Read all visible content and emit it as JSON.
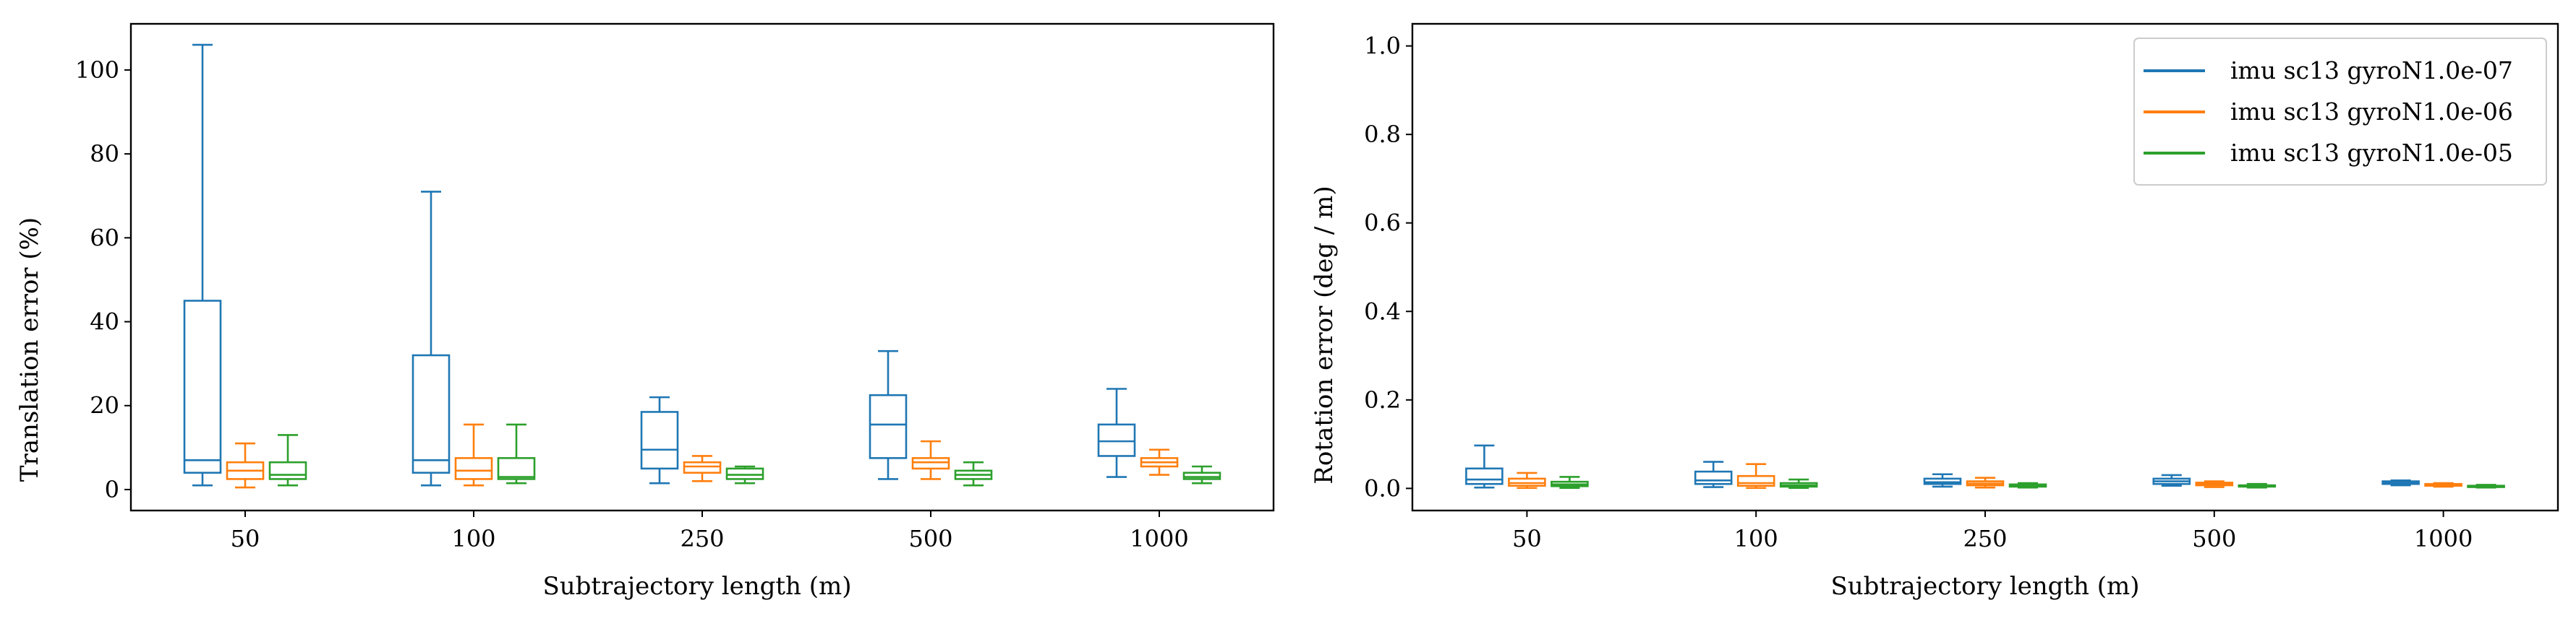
{
  "chart_data": [
    {
      "type": "boxplot",
      "xlabel": "Subtrajectory length (m)",
      "ylabel": "Translation error (%)",
      "ylim": [
        -5,
        111
      ],
      "yticks": [
        0,
        20,
        40,
        60,
        80,
        100
      ],
      "categories": [
        "50",
        "100",
        "250",
        "500",
        "1000"
      ],
      "grid": false,
      "series": [
        {
          "name": "imu sc13 gyroN1.0e-07",
          "color": "#1f77b4",
          "boxes": [
            {
              "whisker_low": 1,
              "q1": 4,
              "median": 7,
              "q3": 45,
              "whisker_high": 106
            },
            {
              "whisker_low": 1,
              "q1": 4,
              "median": 7,
              "q3": 32,
              "whisker_high": 71
            },
            {
              "whisker_low": 1.5,
              "q1": 5,
              "median": 9.5,
              "q3": 18.5,
              "whisker_high": 22
            },
            {
              "whisker_low": 2.5,
              "q1": 7.5,
              "median": 15.5,
              "q3": 22.5,
              "whisker_high": 33
            },
            {
              "whisker_low": 3,
              "q1": 8,
              "median": 11.5,
              "q3": 15.5,
              "whisker_high": 24
            }
          ]
        },
        {
          "name": "imu sc13 gyroN1.0e-06",
          "color": "#ff7f0e",
          "boxes": [
            {
              "whisker_low": 0.5,
              "q1": 2.5,
              "median": 4.5,
              "q3": 6.5,
              "whisker_high": 11
            },
            {
              "whisker_low": 1,
              "q1": 2.5,
              "median": 4.5,
              "q3": 7.5,
              "whisker_high": 15.5
            },
            {
              "whisker_low": 2,
              "q1": 4,
              "median": 5.5,
              "q3": 6.5,
              "whisker_high": 8
            },
            {
              "whisker_low": 2.5,
              "q1": 5,
              "median": 6.5,
              "q3": 7.5,
              "whisker_high": 11.5
            },
            {
              "whisker_low": 3.5,
              "q1": 5.5,
              "median": 6.5,
              "q3": 7.5,
              "whisker_high": 9.5
            }
          ]
        },
        {
          "name": "imu sc13 gyroN1.0e-05",
          "color": "#2ca02c",
          "boxes": [
            {
              "whisker_low": 1,
              "q1": 2.5,
              "median": 3.5,
              "q3": 6.5,
              "whisker_high": 13
            },
            {
              "whisker_low": 1.5,
              "q1": 2.5,
              "median": 3,
              "q3": 7.5,
              "whisker_high": 15.5
            },
            {
              "whisker_low": 1.5,
              "q1": 2.5,
              "median": 3.5,
              "q3": 5,
              "whisker_high": 5.5
            },
            {
              "whisker_low": 1,
              "q1": 2.5,
              "median": 3.5,
              "q3": 4.5,
              "whisker_high": 6.5
            },
            {
              "whisker_low": 1.5,
              "q1": 2.5,
              "median": 3,
              "q3": 4,
              "whisker_high": 5.5
            }
          ]
        }
      ]
    },
    {
      "type": "boxplot",
      "xlabel": "Subtrajectory length (m)",
      "ylabel": "Rotation error (deg / m)",
      "ylim": [
        -0.05,
        1.05
      ],
      "yticks": [
        0.0,
        0.2,
        0.4,
        0.6,
        0.8,
        1.0
      ],
      "categories": [
        "50",
        "100",
        "250",
        "500",
        "1000"
      ],
      "grid": false,
      "legend": "upper-right",
      "series": [
        {
          "name": "imu sc13 gyroN1.0e-07",
          "color": "#1f77b4",
          "boxes": [
            {
              "whisker_low": 0.002,
              "q1": 0.01,
              "median": 0.02,
              "q3": 0.045,
              "whisker_high": 0.097
            },
            {
              "whisker_low": 0.003,
              "q1": 0.01,
              "median": 0.018,
              "q3": 0.038,
              "whisker_high": 0.06
            },
            {
              "whisker_low": 0.004,
              "q1": 0.01,
              "median": 0.014,
              "q3": 0.022,
              "whisker_high": 0.032
            },
            {
              "whisker_low": 0.006,
              "q1": 0.01,
              "median": 0.016,
              "q3": 0.022,
              "whisker_high": 0.03
            },
            {
              "whisker_low": 0.007,
              "q1": 0.01,
              "median": 0.013,
              "q3": 0.016,
              "whisker_high": 0.018
            }
          ]
        },
        {
          "name": "imu sc13 gyroN1.0e-06",
          "color": "#ff7f0e",
          "boxes": [
            {
              "whisker_low": 0.001,
              "q1": 0.006,
              "median": 0.012,
              "q3": 0.022,
              "whisker_high": 0.035
            },
            {
              "whisker_low": 0.001,
              "q1": 0.006,
              "median": 0.012,
              "q3": 0.028,
              "whisker_high": 0.055
            },
            {
              "whisker_low": 0.002,
              "q1": 0.007,
              "median": 0.011,
              "q3": 0.016,
              "whisker_high": 0.024
            },
            {
              "whisker_low": 0.003,
              "q1": 0.007,
              "median": 0.01,
              "q3": 0.013,
              "whisker_high": 0.016
            },
            {
              "whisker_low": 0.004,
              "q1": 0.006,
              "median": 0.008,
              "q3": 0.01,
              "whisker_high": 0.012
            }
          ]
        },
        {
          "name": "imu sc13 gyroN1.0e-05",
          "color": "#2ca02c",
          "boxes": [
            {
              "whisker_low": 0.001,
              "q1": 0.005,
              "median": 0.009,
              "q3": 0.015,
              "whisker_high": 0.026
            },
            {
              "whisker_low": 0.001,
              "q1": 0.004,
              "median": 0.007,
              "q3": 0.012,
              "whisker_high": 0.02
            },
            {
              "whisker_low": 0.002,
              "q1": 0.004,
              "median": 0.006,
              "q3": 0.009,
              "whisker_high": 0.012
            },
            {
              "whisker_low": 0.002,
              "q1": 0.004,
              "median": 0.005,
              "q3": 0.007,
              "whisker_high": 0.01
            },
            {
              "whisker_low": 0.002,
              "q1": 0.003,
              "median": 0.004,
              "q3": 0.006,
              "whisker_high": 0.008
            }
          ]
        }
      ]
    }
  ]
}
